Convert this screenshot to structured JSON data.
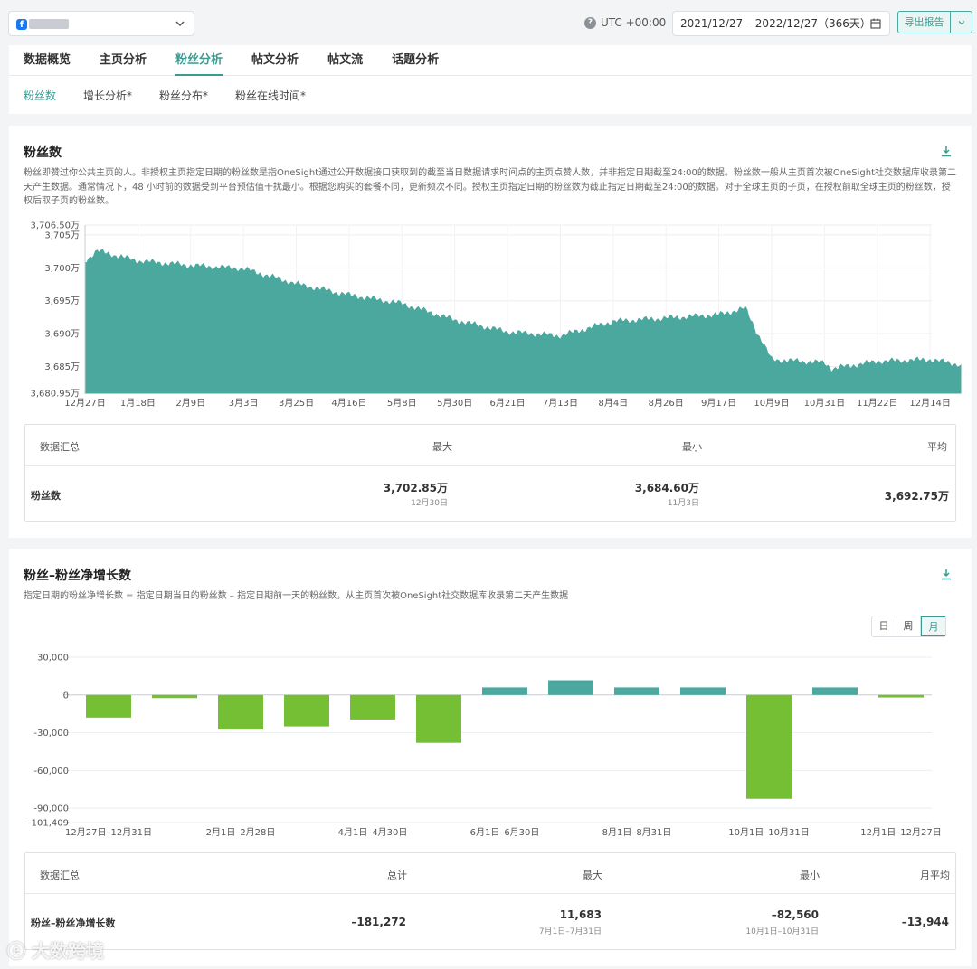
{
  "topbar": {
    "page_icon": "facebook-icon",
    "timezone_label": "UTC +00:00",
    "date_range": "2021/12/27 – 2022/12/27（366天）",
    "export_label": "导出报告"
  },
  "tabs": [
    {
      "label": "数据概览",
      "active": false
    },
    {
      "label": "主页分析",
      "active": false
    },
    {
      "label": "粉丝分析",
      "active": true
    },
    {
      "label": "帖文分析",
      "active": false
    },
    {
      "label": "帖文流",
      "active": false
    },
    {
      "label": "话题分析",
      "active": false
    }
  ],
  "subtabs": [
    {
      "label": "粉丝数",
      "active": true
    },
    {
      "label": "增长分析*",
      "active": false
    },
    {
      "label": "粉丝分布*",
      "active": false
    },
    {
      "label": "粉丝在线时间*",
      "active": false
    }
  ],
  "fans": {
    "title": "粉丝数",
    "description": "粉丝即赞过你公共主页的人。非授权主页指定日期的粉丝数是指OneSight通过公开数据接口获取到的截至当日数据请求时间点的主页点赞人数，并非指定日期截至24:00的数据。粉丝数一般从主页首次被OneSight社交数据库收录第二天产生数据。通常情况下，48 小时前的数据受到平台预估值干扰最小。根据您购买的套餐不同，更新频次不同。授权主页指定日期的粉丝数为截止指定日期截至24:00的数据。对于全球主页的子页，在授权前取全球主页的粉丝数，授权后取子页的粉丝数。",
    "summary": {
      "header_label": "数据汇总",
      "col_max": "最大",
      "col_min": "最小",
      "col_avg": "平均",
      "row_label": "粉丝数",
      "max_value": "3,702.85万",
      "max_date": "12月30日",
      "min_value": "3,684.60万",
      "min_date": "11月3日",
      "avg_value": "3,692.75万"
    }
  },
  "growth": {
    "title": "粉丝–粉丝净增长数",
    "description": "指定日期的粉丝净增长数 = 指定日期当日的粉丝数 – 指定日期前一天的粉丝数，从主页首次被OneSight社交数据库收录第二天产生数据",
    "granularity": [
      {
        "label": "日",
        "active": false
      },
      {
        "label": "周",
        "active": false
      },
      {
        "label": "月",
        "active": true
      }
    ],
    "summary": {
      "header_label": "数据汇总",
      "col_total": "总计",
      "col_max": "最大",
      "col_min": "最小",
      "col_avg": "月平均",
      "row_label": "粉丝–粉丝净增长数",
      "total_value": "–181,272",
      "max_value": "11,683",
      "max_date": "7月1日–7月31日",
      "min_value": "–82,560",
      "min_date": "10月1日–10月31日",
      "avg_value": "–13,944"
    }
  },
  "chart_data": [
    {
      "type": "area",
      "title": "粉丝数",
      "unit": "万",
      "color": "#4aa89e",
      "ylim": [
        3680.95,
        3706.5
      ],
      "y_ticks": [
        "3,680.95万",
        "3,685万",
        "3,690万",
        "3,695万",
        "3,700万",
        "3,705万",
        "3,706.50万"
      ],
      "x_ticks": [
        "12月27日",
        "1月18日",
        "2月9日",
        "3月3日",
        "3月25日",
        "4月16日",
        "5月8日",
        "5月30日",
        "6月21日",
        "7月13日",
        "8月4日",
        "8月26日",
        "9月17日",
        "10月9日",
        "10月31日",
        "11月22日",
        "12月14日"
      ],
      "x": [
        "12月27日",
        "1月1日",
        "1月18日",
        "2月9日",
        "3月3日",
        "3月25日",
        "4月16日",
        "5月8日",
        "5月30日",
        "6月21日",
        "7月13日",
        "8月4日",
        "8月26日",
        "9月17日",
        "9月28日",
        "10月3日",
        "10月9日",
        "10月31日",
        "11月3日",
        "11月22日",
        "12月14日",
        "12月27日"
      ],
      "y": [
        3701.0,
        3702.5,
        3701.0,
        3700.3,
        3699.8,
        3697.5,
        3695.8,
        3694.5,
        3692.0,
        3690.2,
        3689.6,
        3691.8,
        3692.3,
        3692.8,
        3693.8,
        3690.0,
        3686.0,
        3685.5,
        3684.6,
        3685.7,
        3686.0,
        3685.2
      ],
      "grid": true,
      "legend": "none"
    },
    {
      "type": "bar",
      "title": "粉丝–粉丝净增长数",
      "categories": [
        "12月27日–12月31日",
        "1月1日–1月31日",
        "2月1日–2月28日",
        "3月1日–3月31日",
        "4月1日–4月30日",
        "5月1日–5月31日",
        "6月1日–6月30日",
        "7月1日–7月31日",
        "8月1日–8月31日",
        "9月1日–9月30日",
        "10月1日–10月31日",
        "11月1日–11月30日",
        "12月1日–12月27日"
      ],
      "x_tick_labels": [
        "12月27日–12月31日",
        "2月1日–2月28日",
        "4月1日–4月30日",
        "6月1日–6月30日",
        "8月1日–8月31日",
        "10月1日–10月31日",
        "12月1日–12月27日"
      ],
      "values": [
        -18000,
        -2500,
        -27500,
        -25000,
        -19500,
        -38000,
        6000,
        11683,
        6000,
        6000,
        -82560,
        6000,
        -2000
      ],
      "positive_color": "#4aa89e",
      "negative_color": "#74bf34",
      "ylim": [
        -101409,
        30000
      ],
      "y_ticks": [
        "30,000",
        "0",
        "-30,000",
        "-60,000",
        "-90,000",
        "-101,409"
      ],
      "grid": true,
      "legend": "none"
    }
  ]
}
